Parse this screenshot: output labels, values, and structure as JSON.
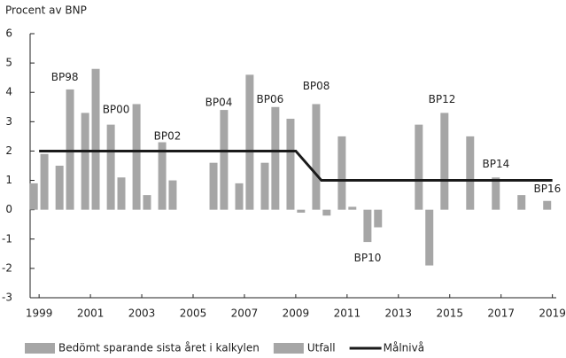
{
  "chart_data": {
    "type": "bar",
    "ylabel": "Procent av BNP",
    "x": [
      1999,
      2000,
      2001,
      2002,
      2003,
      2004,
      2005,
      2006,
      2007,
      2008,
      2009,
      2010,
      2011,
      2012,
      2013,
      2014,
      2015,
      2016,
      2017,
      2018,
      2019
    ],
    "series": [
      {
        "name": "Bedömt sparande sista året i kalkylen",
        "color": "#a6a6a6",
        "type": "bar",
        "values": [
          0.9,
          1.5,
          3.3,
          2.9,
          3.6,
          2.3,
          null,
          1.6,
          0.9,
          1.6,
          3.1,
          3.6,
          2.5,
          -1.1,
          null,
          2.9,
          3.3,
          2.5,
          1.1,
          0.5,
          0.3
        ]
      },
      {
        "name": "Utfall",
        "color": "#a6a6a6",
        "type": "bar",
        "values": [
          1.9,
          4.1,
          4.8,
          1.1,
          0.5,
          1.0,
          null,
          3.4,
          4.6,
          3.5,
          -0.1,
          -0.2,
          0.1,
          -0.6,
          null,
          -1.9,
          null,
          null,
          null,
          null,
          null
        ]
      },
      {
        "name": "Målnivå",
        "color": "#1a1a1a",
        "type": "line",
        "values": [
          2,
          2,
          2,
          2,
          2,
          2,
          2,
          2,
          2,
          2,
          2,
          1,
          1,
          1,
          1,
          1,
          1,
          1,
          1,
          1,
          1
        ]
      }
    ],
    "annotations": [
      {
        "text": "BP98",
        "x": 2000,
        "y": 4.5
      },
      {
        "text": "BP00",
        "x": 2002,
        "y": 3.4
      },
      {
        "text": "BP02",
        "x": 2004,
        "y": 2.5
      },
      {
        "text": "BP04",
        "x": 2006,
        "y": 3.65
      },
      {
        "text": "BP06",
        "x": 2008,
        "y": 3.75
      },
      {
        "text": "BP08",
        "x": 2009.8,
        "y": 4.2
      },
      {
        "text": "BP10",
        "x": 2011.8,
        "y": -1.65
      },
      {
        "text": "BP12",
        "x": 2014.7,
        "y": 3.75
      },
      {
        "text": "BP14",
        "x": 2016.8,
        "y": 1.55
      },
      {
        "text": "BP16",
        "x": 2018.8,
        "y": 0.7
      }
    ],
    "xlim": [
      1998.65,
      2019.15
    ],
    "xticks": [
      1999,
      2001,
      2003,
      2005,
      2007,
      2009,
      2011,
      2013,
      2015,
      2017,
      2019
    ],
    "ylim": [
      -3,
      6
    ],
    "yticks": [
      -3,
      -2,
      -1,
      0,
      1,
      2,
      3,
      4,
      5,
      6
    ],
    "grid": false
  }
}
